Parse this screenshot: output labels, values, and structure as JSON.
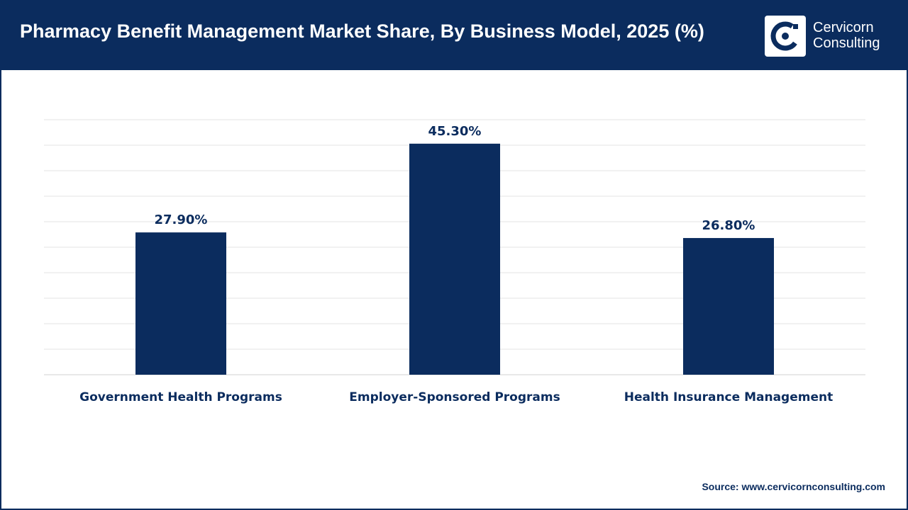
{
  "header": {
    "title": "Pharmacy Benefit Management Market Share, By Business Model, 2025 (%)",
    "logo_line1": "Cervicorn",
    "logo_line2": "Consulting"
  },
  "source": "Source: www.cervicornconsulting.com",
  "colors": {
    "header_bg": "#0b2c5e",
    "bar": "#0b2c5e",
    "gridline": "#e3e3e3",
    "text": "#0b2c5e"
  },
  "chart_data": {
    "type": "bar",
    "categories": [
      "Government Health Programs",
      "Employer-Sponsored Programs",
      "Health Insurance Management"
    ],
    "values": [
      27.9,
      45.3,
      26.8
    ],
    "value_labels": [
      "27.90%",
      "45.30%",
      "26.80%"
    ],
    "title": "Pharmacy Benefit Management Market Share, By Business Model, 2025 (%)",
    "xlabel": "",
    "ylabel": "",
    "ylim": [
      0,
      50
    ],
    "grid": true,
    "legend": "none"
  }
}
